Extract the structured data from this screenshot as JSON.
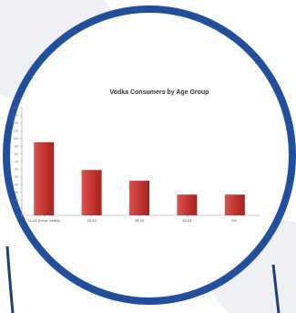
{
  "chart_data": {
    "type": "bar",
    "title": "Vodka Consumers by Age Group",
    "categories": [
      "21-24 (Drink Vodka)",
      "25-34",
      "35-44",
      "45-54",
      "55+"
    ],
    "values": [
      95,
      59,
      45,
      27,
      27
    ],
    "ylim": [
      0,
      140
    ],
    "y_ticks": [
      0,
      10,
      20,
      30,
      40,
      50,
      60,
      70,
      80,
      90,
      100,
      110,
      120,
      130,
      140
    ],
    "xlabel": "",
    "ylabel": "",
    "grid": false,
    "legend": "none",
    "bar_color": "#c0302c",
    "bar_highlight": "#d9544f"
  },
  "frame": {
    "ring_color": "#1f4f9e",
    "shadow_color": "#d9dce2"
  }
}
